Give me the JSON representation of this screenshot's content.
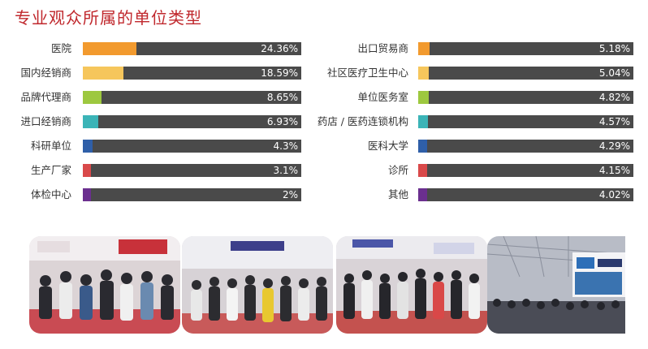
{
  "title": "专业观众所属的单位类型",
  "chart_data": [
    {
      "type": "bar",
      "orientation": "horizontal",
      "categories": [
        "医院",
        "国内经销商",
        "品牌代理商",
        "进口经销商",
        "科研单位",
        "生产厂家",
        "体检中心"
      ],
      "values": [
        24.36,
        18.59,
        8.65,
        6.93,
        4.3,
        3.1,
        2
      ],
      "labels": [
        "24.36%",
        "18.59%",
        "8.65%",
        "6.93%",
        "4.3%",
        "3.1%",
        "2%"
      ],
      "colors": [
        "#f29a2e",
        "#f6c65c",
        "#9dc83f",
        "#3bb4b7",
        "#2f5fa8",
        "#d9494a",
        "#6b2f8f"
      ],
      "xlim": [
        0,
        100
      ],
      "grid": false
    },
    {
      "type": "bar",
      "orientation": "horizontal",
      "categories": [
        "出口贸易商",
        "社区医疗卫生中心",
        "单位医务室",
        "药店 / 医药连锁机构",
        "医科大学",
        "诊所",
        "其他"
      ],
      "values": [
        5.18,
        5.04,
        4.82,
        4.57,
        4.29,
        4.15,
        4.02
      ],
      "labels": [
        "5.18%",
        "5.04%",
        "4.82%",
        "4.57%",
        "4.29%",
        "4.15%",
        "4.02%"
      ],
      "colors": [
        "#f29a2e",
        "#f6c65c",
        "#9dc83f",
        "#3bb4b7",
        "#2f5fa8",
        "#d9494a",
        "#6b2f8f"
      ],
      "xlim": [
        0,
        100
      ],
      "grid": false
    }
  ],
  "photos": [
    {
      "icon": "exhibition-crowd-photo-1"
    },
    {
      "icon": "exhibition-crowd-photo-2"
    },
    {
      "icon": "exhibition-crowd-photo-3"
    },
    {
      "icon": "exhibition-hall-photo-4"
    }
  ]
}
